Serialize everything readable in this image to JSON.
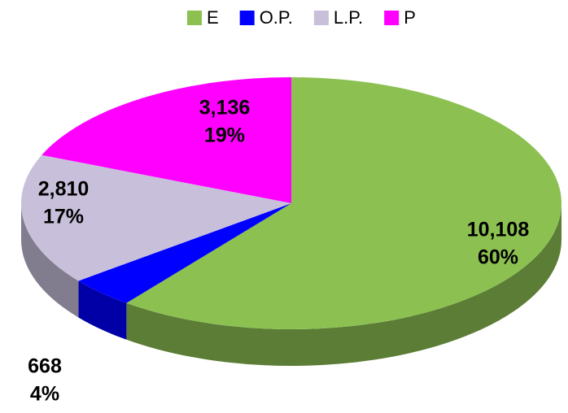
{
  "chart_data": {
    "type": "pie",
    "categories": [
      "E",
      "O.P.",
      "L.P.",
      "P"
    ],
    "values": [
      10108,
      668,
      2810,
      3136
    ],
    "value_labels": [
      "10,108",
      "668",
      "2,810",
      "3,136"
    ],
    "percent_labels": [
      "60%",
      "4%",
      "17%",
      "19%"
    ],
    "colors": [
      "#8cc152",
      "#0000ff",
      "#c8c0da",
      "#ff00ff"
    ],
    "legend": "top"
  }
}
